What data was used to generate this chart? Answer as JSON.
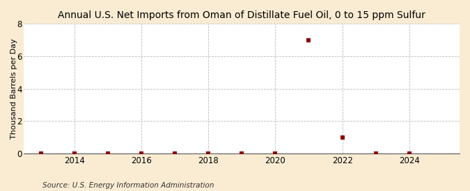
{
  "title": "Annual U.S. Net Imports from Oman of Distillate Fuel Oil, 0 to 15 ppm Sulfur",
  "ylabel": "Thousand Barrels per Day",
  "source": "Source: U.S. Energy Information Administration",
  "background_color": "#faecd2",
  "plot_background_color": "#ffffff",
  "xlim": [
    2012.5,
    2025.5
  ],
  "ylim": [
    0,
    8
  ],
  "yticks": [
    0,
    2,
    4,
    6,
    8
  ],
  "xticks": [
    2014,
    2016,
    2018,
    2020,
    2022,
    2024
  ],
  "data_x": [
    2013,
    2014,
    2015,
    2016,
    2017,
    2018,
    2019,
    2020,
    2021,
    2022,
    2023,
    2024
  ],
  "data_y": [
    0,
    0,
    0,
    0,
    0,
    0,
    0,
    0,
    7,
    1,
    0,
    0
  ],
  "marker_color": "#8b0000",
  "marker_size": 4,
  "grid_color": "#bbbbbb",
  "title_fontsize": 10,
  "axis_fontsize": 8,
  "tick_fontsize": 8.5,
  "source_fontsize": 7.5
}
